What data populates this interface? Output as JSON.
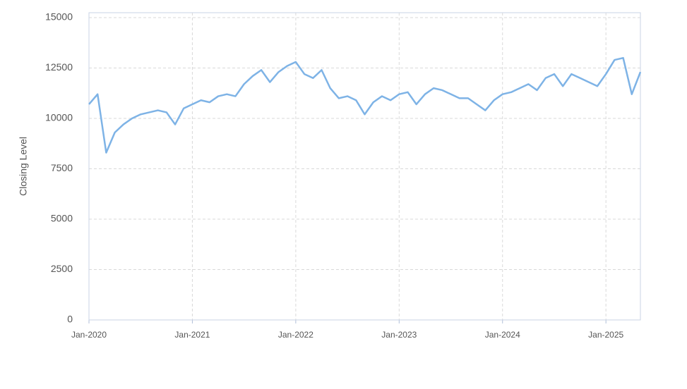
{
  "chart_data": {
    "type": "line",
    "y_label": "Closing Level",
    "x": [
      "2020-01",
      "2020-02",
      "2020-03",
      "2020-04",
      "2020-05",
      "2020-06",
      "2020-07",
      "2020-08",
      "2020-09",
      "2020-10",
      "2020-11",
      "2020-12",
      "2021-01",
      "2021-02",
      "2021-03",
      "2021-04",
      "2021-05",
      "2021-06",
      "2021-07",
      "2021-08",
      "2021-09",
      "2021-10",
      "2021-11",
      "2021-12",
      "2022-01",
      "2022-02",
      "2022-03",
      "2022-04",
      "2022-05",
      "2022-06",
      "2022-07",
      "2022-08",
      "2022-09",
      "2022-10",
      "2022-11",
      "2022-12",
      "2023-01",
      "2023-02",
      "2023-03",
      "2023-04",
      "2023-05",
      "2023-06",
      "2023-07",
      "2023-08",
      "2023-09",
      "2023-10",
      "2023-11",
      "2023-12",
      "2024-01",
      "2024-02",
      "2024-03",
      "2024-04",
      "2024-05",
      "2024-06",
      "2024-07",
      "2024-08",
      "2024-09",
      "2024-10",
      "2024-11",
      "2024-12",
      "2025-01",
      "2025-02",
      "2025-03",
      "2025-04",
      "2025-05"
    ],
    "values": [
      10700,
      11200,
      8300,
      9300,
      9700,
      10000,
      10200,
      10300,
      10400,
      10300,
      9700,
      10500,
      10700,
      10900,
      10800,
      11100,
      11200,
      11100,
      11700,
      12100,
      12400,
      11800,
      12300,
      12600,
      12800,
      12200,
      12000,
      12400,
      11500,
      11000,
      11100,
      10900,
      10200,
      10800,
      11100,
      10900,
      11200,
      11300,
      10700,
      11200,
      11500,
      11400,
      11200,
      11000,
      11000,
      10700,
      10400,
      10900,
      11200,
      11300,
      11500,
      11700,
      11400,
      12000,
      12200,
      11600,
      12200,
      12000,
      11800,
      11600,
      12200,
      12900,
      13000,
      11200,
      12300
    ],
    "color": "#7eb3e6",
    "xlim": [
      "2020-01",
      "2025-05"
    ],
    "xticks": [
      {
        "value": "2020-01",
        "label": "Jan-2020"
      },
      {
        "value": "2021-01",
        "label": "Jan-2021"
      },
      {
        "value": "2022-01",
        "label": "Jan-2022"
      },
      {
        "value": "2023-01",
        "label": "Jan-2023"
      },
      {
        "value": "2024-01",
        "label": "Jan-2024"
      },
      {
        "value": "2025-01",
        "label": "Jan-2025"
      }
    ],
    "ylim": [
      0,
      15000
    ],
    "yticks": [
      0,
      2500,
      5000,
      7500,
      10000,
      12500,
      15000
    ],
    "grid": true
  }
}
